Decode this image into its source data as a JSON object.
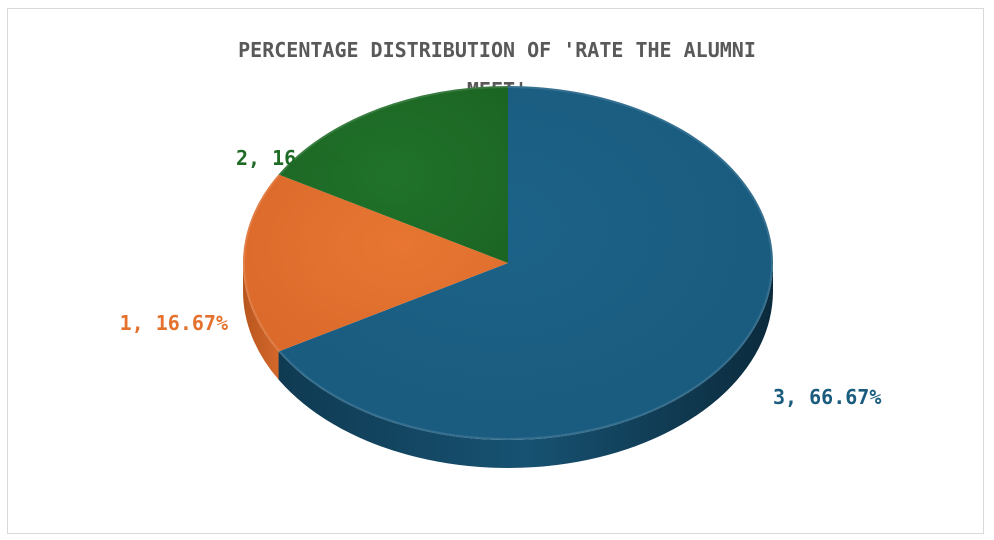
{
  "chart_data": {
    "type": "pie",
    "title": "PERCENTAGE DISTRIBUTION OF 'RATE THE ALUMNI MEET'",
    "title_lines": [
      "PERCENTAGE DISTRIBUTION OF 'RATE THE ALUMNI",
      "MEET'"
    ],
    "categories": [
      "3",
      "1",
      "2"
    ],
    "values": [
      66.67,
      16.67,
      16.67
    ],
    "labels": [
      "3, 66.67%",
      "1, 16.67%",
      "2, 16.67%"
    ],
    "colors": [
      "#1a5b7e",
      "#e4712e",
      "#1e6b25"
    ],
    "style": "3d-pie",
    "legend": "none"
  }
}
